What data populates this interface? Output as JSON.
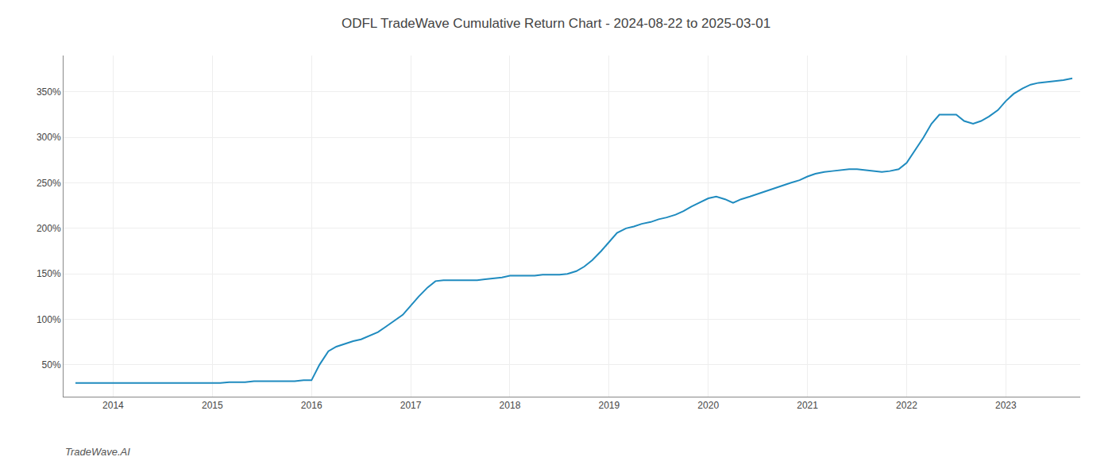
{
  "chart_data": {
    "type": "line",
    "title": "ODFL TradeWave Cumulative Return Chart - 2024-08-22 to 2025-03-01",
    "annotations": [
      "TradeWave.AI"
    ],
    "color": "#1f8bbf",
    "grid": true,
    "x": [
      2013.62,
      2013.7,
      2013.78,
      2013.87,
      2013.95,
      2014.0,
      2014.08,
      2014.17,
      2014.25,
      2014.33,
      2014.42,
      2014.5,
      2014.58,
      2014.67,
      2014.75,
      2014.83,
      2014.92,
      2015.0,
      2015.08,
      2015.17,
      2015.25,
      2015.33,
      2015.42,
      2015.5,
      2015.58,
      2015.67,
      2015.75,
      2015.83,
      2015.92,
      2016.0,
      2016.08,
      2016.17,
      2016.25,
      2016.33,
      2016.42,
      2016.5,
      2016.58,
      2016.67,
      2016.75,
      2016.83,
      2016.92,
      2017.0,
      2017.08,
      2017.17,
      2017.25,
      2017.33,
      2017.42,
      2017.5,
      2017.58,
      2017.67,
      2017.75,
      2017.83,
      2017.92,
      2018.0,
      2018.08,
      2018.17,
      2018.25,
      2018.33,
      2018.42,
      2018.5,
      2018.58,
      2018.67,
      2018.75,
      2018.83,
      2018.92,
      2019.0,
      2019.08,
      2019.17,
      2019.25,
      2019.33,
      2019.42,
      2019.5,
      2019.58,
      2019.67,
      2019.75,
      2019.83,
      2019.92,
      2020.0,
      2020.08,
      2020.17,
      2020.25,
      2020.33,
      2020.42,
      2020.5,
      2020.58,
      2020.67,
      2020.75,
      2020.83,
      2020.92,
      2021.0,
      2021.08,
      2021.17,
      2021.25,
      2021.33,
      2021.42,
      2021.5,
      2021.58,
      2021.67,
      2021.75,
      2021.83,
      2021.92,
      2022.0,
      2022.08,
      2022.17,
      2022.25,
      2022.33,
      2022.42,
      2022.5,
      2022.58,
      2022.67,
      2022.75,
      2022.83,
      2022.92,
      2023.0,
      2023.08,
      2023.17,
      2023.25,
      2023.33,
      2023.42,
      2023.5,
      2023.58,
      2023.67
    ],
    "values": [
      30,
      30,
      30,
      30,
      30,
      30,
      30,
      30,
      30,
      30,
      30,
      30,
      30,
      30,
      30,
      30,
      30,
      30,
      30,
      31,
      31,
      31,
      32,
      32,
      32,
      32,
      32,
      32,
      33,
      33,
      50,
      65,
      70,
      73,
      76,
      78,
      82,
      86,
      92,
      98,
      105,
      115,
      125,
      135,
      142,
      143,
      143,
      143,
      143,
      143,
      144,
      145,
      146,
      148,
      148,
      148,
      148,
      149,
      149,
      149,
      150,
      153,
      158,
      165,
      175,
      185,
      195,
      200,
      202,
      205,
      207,
      210,
      212,
      215,
      219,
      224,
      229,
      233,
      235,
      232,
      228,
      232,
      235,
      238,
      241,
      244,
      247,
      250,
      253,
      257,
      260,
      262,
      263,
      264,
      265,
      265,
      264,
      263,
      262,
      263,
      265,
      272,
      285,
      300,
      315,
      325,
      325,
      325,
      318,
      315,
      318,
      323,
      330,
      340,
      348,
      354,
      358,
      360,
      361,
      362,
      363,
      365
    ],
    "xlim": [
      2013.5,
      2023.75
    ],
    "xticks": [
      2014,
      2015,
      2016,
      2017,
      2018,
      2019,
      2020,
      2021,
      2022,
      2023
    ],
    "ylim": [
      15,
      390
    ],
    "yticks": [
      {
        "value": 50,
        "label": "50%"
      },
      {
        "value": 100,
        "label": "100%"
      },
      {
        "value": 150,
        "label": "150%"
      },
      {
        "value": 200,
        "label": "200%"
      },
      {
        "value": 250,
        "label": "250%"
      },
      {
        "value": 300,
        "label": "300%"
      },
      {
        "value": 350,
        "label": "350%"
      }
    ]
  }
}
